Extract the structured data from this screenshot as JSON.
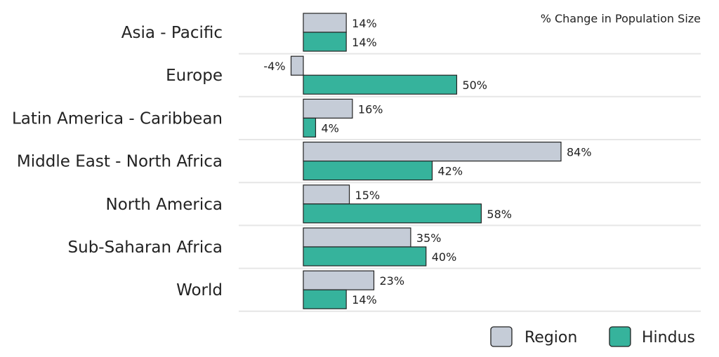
{
  "chart_data": {
    "type": "bar",
    "orientation": "horizontal",
    "categories": [
      "Asia - Pacific",
      "Europe",
      "Latin America - Caribbean",
      "Middle East - North Africa",
      "North America",
      "Sub-Saharan Africa",
      "World"
    ],
    "series": [
      {
        "name": "Region",
        "color": "#c5ccd7",
        "values": [
          14,
          -4,
          16,
          84,
          15,
          35,
          23
        ],
        "labels": [
          "14%",
          "-4%",
          "16%",
          "84%",
          "15%",
          "35%",
          "23%"
        ]
      },
      {
        "name": "Hindus",
        "color": "#36b39c",
        "values": [
          14,
          50,
          4,
          42,
          58,
          40,
          14
        ],
        "labels": [
          "14%",
          "50%",
          "4%",
          "42%",
          "58%",
          "40%",
          "14%"
        ]
      }
    ],
    "annotation": "% Change in Population Size",
    "legend_position": "bottom-right",
    "grid": false
  }
}
